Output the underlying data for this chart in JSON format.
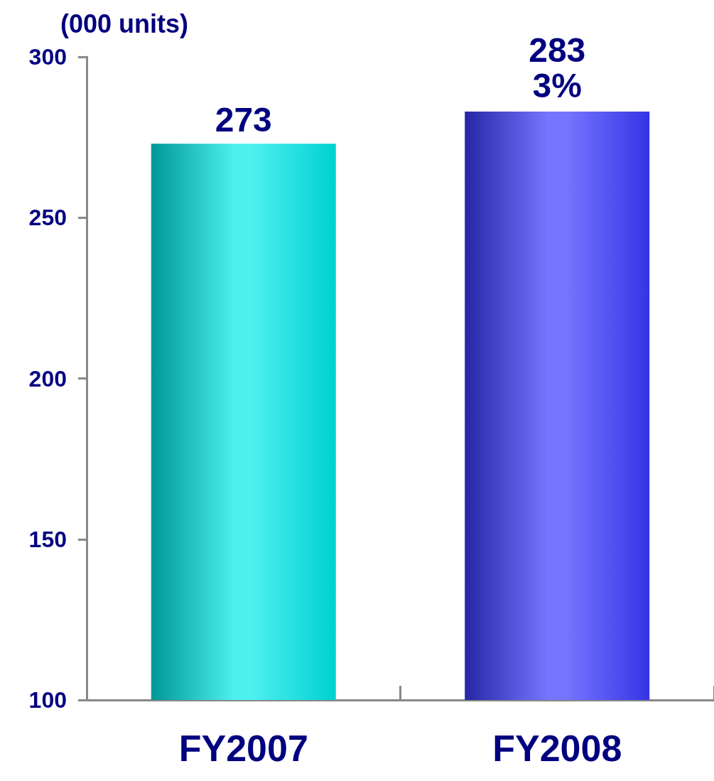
{
  "chart_data": {
    "type": "bar",
    "ylabel": "(000 units)",
    "categories": [
      "FY2007",
      "FY2008"
    ],
    "values": [
      273,
      283
    ],
    "colors": [
      "#00e8e8",
      "#3a3aff"
    ],
    "ylim": [
      100,
      300
    ],
    "yticks": [
      100,
      150,
      200,
      250,
      300
    ],
    "grid": false,
    "data_labels": true,
    "annotations": [
      {
        "text": "3%",
        "x": "FY2008",
        "y": 283
      }
    ]
  }
}
